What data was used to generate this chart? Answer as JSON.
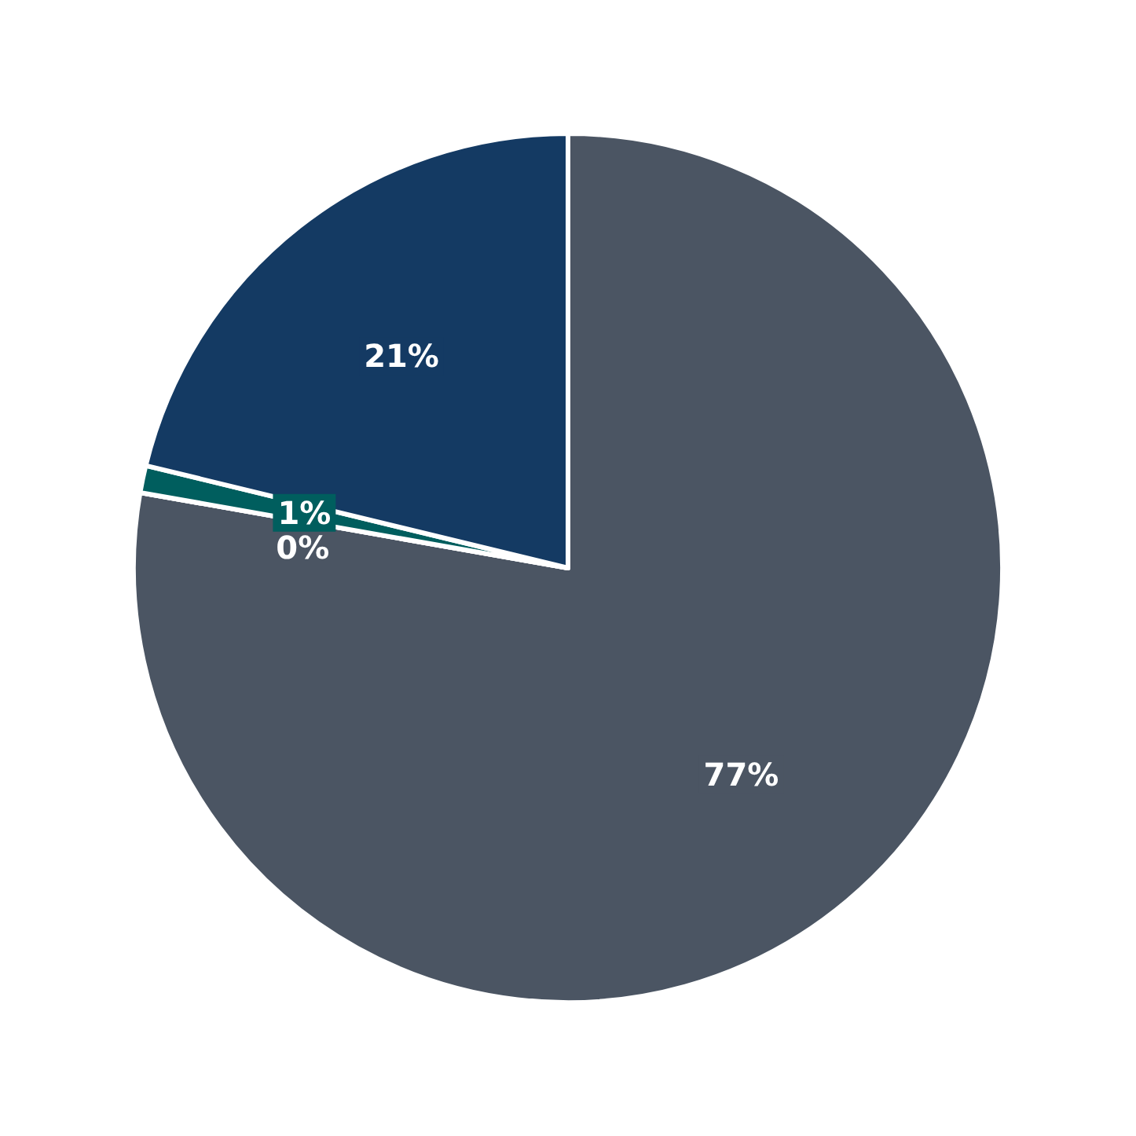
{
  "chart_data": {
    "type": "pie",
    "categories": [
      null,
      null,
      null,
      null
    ],
    "values": [
      77,
      0,
      1,
      21
    ],
    "value_labels": [
      "77%",
      "0%",
      "1%",
      "21%"
    ],
    "colors": [
      "#4b5563",
      "#cde8f2",
      "#005e5e",
      "#143a63"
    ]
  }
}
